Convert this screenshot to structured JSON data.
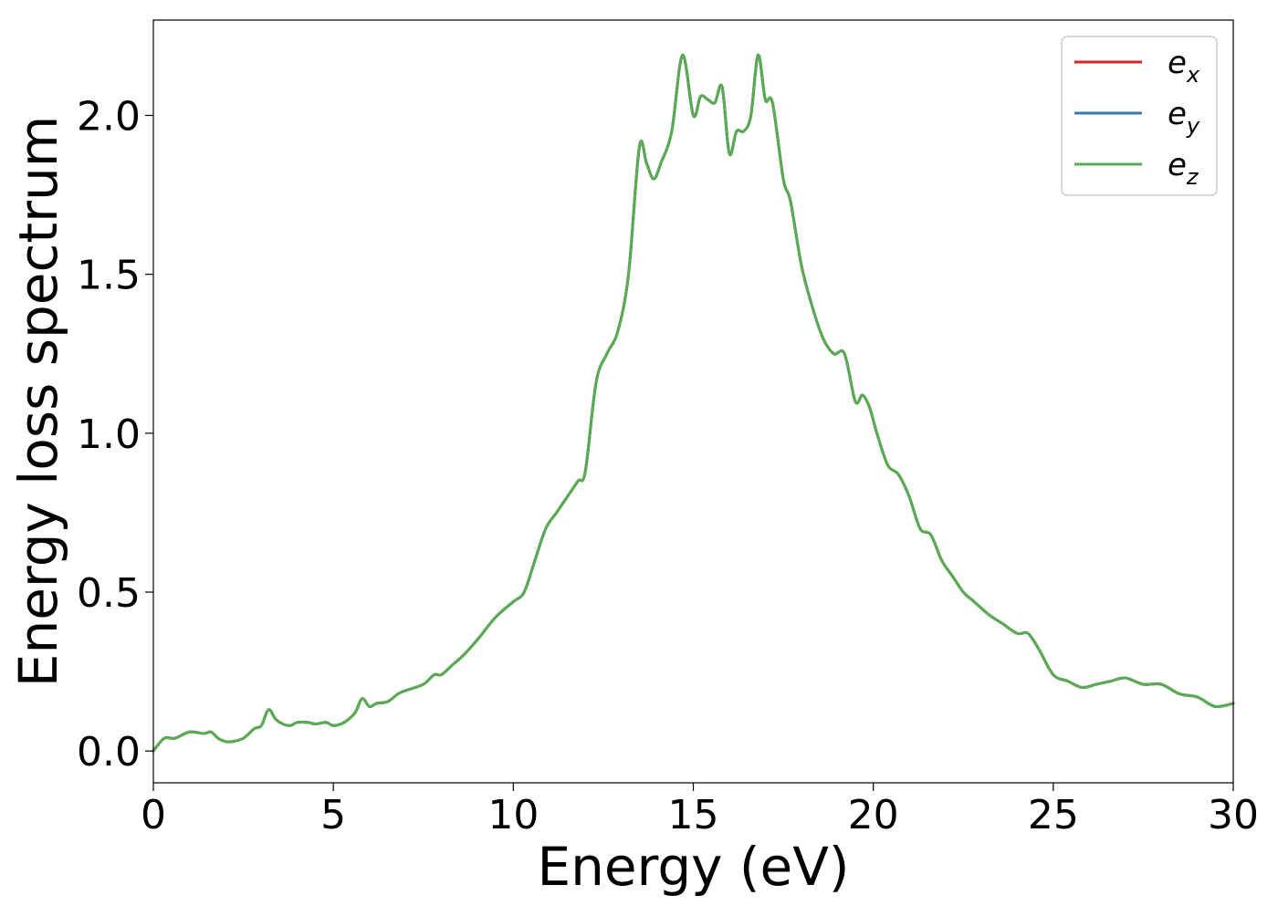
{
  "chart_data": {
    "type": "line",
    "title": "",
    "xlabel": "Energy (eV)",
    "ylabel": "Energy loss spectrum",
    "xlim": [
      0,
      30
    ],
    "ylim": [
      -0.1,
      2.3
    ],
    "xticks": [
      0,
      5,
      10,
      15,
      20,
      25,
      30
    ],
    "xtick_labels": [
      "0",
      "5",
      "10",
      "15",
      "20",
      "25",
      "30"
    ],
    "yticks": [
      0.0,
      0.5,
      1.0,
      1.5,
      2.0
    ],
    "ytick_labels": [
      "0.0",
      "0.5",
      "1.0",
      "1.5",
      "2.0"
    ],
    "grid": false,
    "legend_position": "top-right",
    "note_series": "the three series overlap; values identical",
    "x": [
      0,
      0.3,
      0.6,
      1.0,
      1.4,
      1.6,
      1.8,
      2.0,
      2.2,
      2.5,
      2.8,
      3.0,
      3.2,
      3.4,
      3.6,
      3.8,
      4.0,
      4.3,
      4.5,
      4.8,
      5.0,
      5.3,
      5.6,
      5.8,
      6.0,
      6.2,
      6.5,
      6.8,
      7.0,
      7.5,
      7.8,
      8.0,
      8.3,
      8.6,
      9.0,
      9.5,
      10.0,
      10.3,
      10.6,
      10.9,
      11.2,
      11.5,
      11.8,
      12.0,
      12.3,
      12.6,
      12.9,
      13.2,
      13.5,
      13.7,
      13.9,
      14.1,
      14.4,
      14.7,
      15.0,
      15.2,
      15.4,
      15.6,
      15.8,
      16.0,
      16.2,
      16.4,
      16.6,
      16.8,
      17.0,
      17.2,
      17.5,
      17.7,
      18.0,
      18.3,
      18.6,
      18.9,
      19.2,
      19.5,
      19.7,
      19.9,
      20.1,
      20.4,
      20.7,
      21.0,
      21.3,
      21.6,
      21.9,
      22.2,
      22.5,
      22.8,
      23.2,
      23.6,
      24.0,
      24.3,
      24.6,
      25.0,
      25.4,
      25.8,
      26.2,
      26.6,
      27.0,
      27.5,
      28.0,
      28.5,
      29.0,
      29.5,
      30.0
    ],
    "series": [
      {
        "name": "e_x",
        "color": "#d62728",
        "y": [
          0.0,
          0.04,
          0.04,
          0.06,
          0.055,
          0.06,
          0.04,
          0.03,
          0.03,
          0.04,
          0.07,
          0.08,
          0.13,
          0.1,
          0.085,
          0.08,
          0.09,
          0.09,
          0.085,
          0.09,
          0.08,
          0.09,
          0.12,
          0.165,
          0.14,
          0.15,
          0.155,
          0.18,
          0.19,
          0.21,
          0.24,
          0.24,
          0.27,
          0.3,
          0.35,
          0.42,
          0.47,
          0.5,
          0.6,
          0.7,
          0.75,
          0.8,
          0.85,
          0.88,
          1.16,
          1.25,
          1.32,
          1.5,
          1.9,
          1.85,
          1.8,
          1.85,
          1.95,
          2.19,
          2.0,
          2.06,
          2.05,
          2.04,
          2.09,
          1.88,
          1.95,
          1.95,
          2.0,
          2.19,
          2.05,
          2.04,
          1.8,
          1.73,
          1.53,
          1.4,
          1.3,
          1.25,
          1.25,
          1.1,
          1.12,
          1.08,
          1.0,
          0.9,
          0.87,
          0.8,
          0.7,
          0.68,
          0.6,
          0.55,
          0.5,
          0.47,
          0.43,
          0.4,
          0.37,
          0.37,
          0.32,
          0.24,
          0.22,
          0.2,
          0.21,
          0.22,
          0.23,
          0.21,
          0.21,
          0.18,
          0.17,
          0.14,
          0.15
        ]
      },
      {
        "name": "e_y",
        "color": "#3a78b0",
        "y": [
          0.0,
          0.04,
          0.04,
          0.06,
          0.055,
          0.06,
          0.04,
          0.03,
          0.03,
          0.04,
          0.07,
          0.08,
          0.13,
          0.1,
          0.085,
          0.08,
          0.09,
          0.09,
          0.085,
          0.09,
          0.08,
          0.09,
          0.12,
          0.165,
          0.14,
          0.15,
          0.155,
          0.18,
          0.19,
          0.21,
          0.24,
          0.24,
          0.27,
          0.3,
          0.35,
          0.42,
          0.47,
          0.5,
          0.6,
          0.7,
          0.75,
          0.8,
          0.85,
          0.88,
          1.16,
          1.25,
          1.32,
          1.5,
          1.9,
          1.85,
          1.8,
          1.85,
          1.95,
          2.19,
          2.0,
          2.06,
          2.05,
          2.04,
          2.09,
          1.88,
          1.95,
          1.95,
          2.0,
          2.19,
          2.05,
          2.04,
          1.8,
          1.73,
          1.53,
          1.4,
          1.3,
          1.25,
          1.25,
          1.1,
          1.12,
          1.08,
          1.0,
          0.9,
          0.87,
          0.8,
          0.7,
          0.68,
          0.6,
          0.55,
          0.5,
          0.47,
          0.43,
          0.4,
          0.37,
          0.37,
          0.32,
          0.24,
          0.22,
          0.2,
          0.21,
          0.22,
          0.23,
          0.21,
          0.21,
          0.18,
          0.17,
          0.14,
          0.15
        ]
      },
      {
        "name": "e_z",
        "color": "#5aac52",
        "y": [
          0.0,
          0.04,
          0.04,
          0.06,
          0.055,
          0.06,
          0.04,
          0.03,
          0.03,
          0.04,
          0.07,
          0.08,
          0.13,
          0.1,
          0.085,
          0.08,
          0.09,
          0.09,
          0.085,
          0.09,
          0.08,
          0.09,
          0.12,
          0.165,
          0.14,
          0.15,
          0.155,
          0.18,
          0.19,
          0.21,
          0.24,
          0.24,
          0.27,
          0.3,
          0.35,
          0.42,
          0.47,
          0.5,
          0.6,
          0.7,
          0.75,
          0.8,
          0.85,
          0.88,
          1.16,
          1.25,
          1.32,
          1.5,
          1.9,
          1.85,
          1.8,
          1.85,
          1.95,
          2.19,
          2.0,
          2.06,
          2.05,
          2.04,
          2.09,
          1.88,
          1.95,
          1.95,
          2.0,
          2.19,
          2.05,
          2.04,
          1.8,
          1.73,
          1.53,
          1.4,
          1.3,
          1.25,
          1.25,
          1.1,
          1.12,
          1.08,
          1.0,
          0.9,
          0.87,
          0.8,
          0.7,
          0.68,
          0.6,
          0.55,
          0.5,
          0.47,
          0.43,
          0.4,
          0.37,
          0.37,
          0.32,
          0.24,
          0.22,
          0.2,
          0.21,
          0.22,
          0.23,
          0.21,
          0.21,
          0.18,
          0.17,
          0.14,
          0.15
        ]
      }
    ],
    "legend": [
      {
        "base": "e",
        "sub": "x"
      },
      {
        "base": "e",
        "sub": "y"
      },
      {
        "base": "e",
        "sub": "z"
      }
    ]
  }
}
